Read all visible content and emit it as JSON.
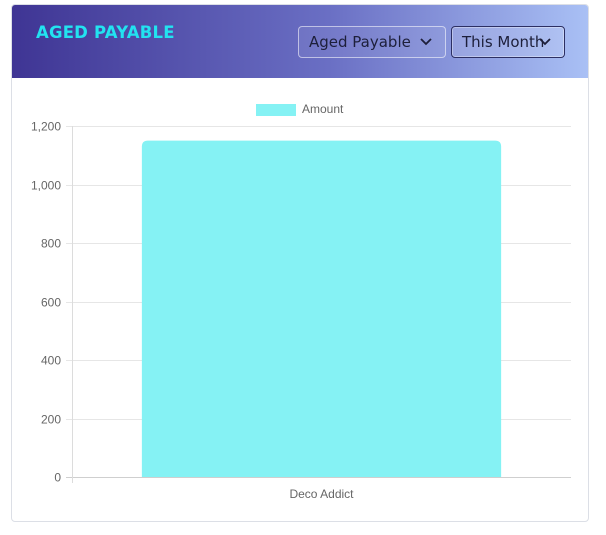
{
  "header": {
    "title": "AGED PAYABLE",
    "report_select": {
      "value": "Aged Payable",
      "icon": "chevron-down-icon"
    },
    "period_select": {
      "value": "This Month",
      "icon": "chevron-down-icon"
    }
  },
  "colors": {
    "title": "#22e3f0",
    "bar": "#85f2f4",
    "header_gradient": [
      "#3f3594",
      "#a9c0f5"
    ]
  },
  "chart_data": {
    "type": "bar",
    "categories": [
      "Deco Addict"
    ],
    "series": [
      {
        "name": "Amount",
        "values": [
          1150
        ]
      }
    ],
    "ylim": [
      0,
      1200
    ],
    "yticks": [
      0,
      200,
      400,
      600,
      800,
      1000,
      1200
    ],
    "ytick_labels": [
      "0",
      "200",
      "400",
      "600",
      "800",
      "1,000",
      "1,200"
    ],
    "legend": "top-center",
    "grid": true
  }
}
